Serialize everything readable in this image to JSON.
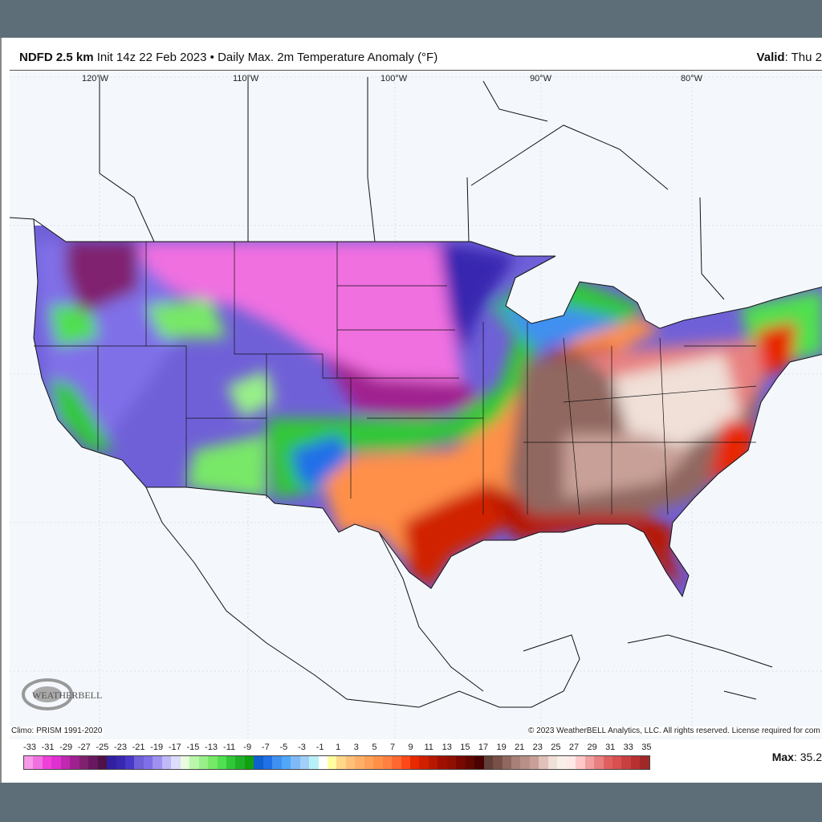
{
  "header": {
    "model": "NDFD 2.5 km",
    "init": "Init 14z 22 Feb 2023",
    "separator": "•",
    "product": "Daily Max. 2m Temperature Anomaly (°F)",
    "valid_label": "Valid",
    "valid_value": ": Thu 2"
  },
  "longitudes": [
    "120°W",
    "110°W",
    "100°W",
    "90°W",
    "80°W"
  ],
  "climo": "Climo: PRISM 1991-2020",
  "copyright": "© 2023 WeatherBELL Analytics, LLC. All rights reserved. License required for com",
  "logo_text": "WeatherBELL",
  "max": {
    "label": "Max",
    "value": ": 35.2"
  },
  "colorbar": {
    "labels": [
      "-33",
      "-31",
      "-29",
      "-27",
      "-25",
      "-23",
      "-21",
      "-19",
      "-17",
      "-15",
      "-13",
      "-11",
      "-9",
      "-7",
      "-5",
      "-3",
      "-1",
      "1",
      "3",
      "5",
      "7",
      "9",
      "11",
      "13",
      "15",
      "17",
      "19",
      "21",
      "23",
      "25",
      "27",
      "29",
      "31",
      "33",
      "35"
    ],
    "colors": [
      "#f898e8",
      "#f070e0",
      "#f040d8",
      "#e030d0",
      "#c028b0",
      "#a02090",
      "#802070",
      "#681860",
      "#501048",
      "#3020a0",
      "#3828b0",
      "#4838c8",
      "#7060d8",
      "#8070e8",
      "#a090f0",
      "#c0b8f8",
      "#dcdcfc",
      "#e8fce0",
      "#b8f8a8",
      "#98f088",
      "#78e868",
      "#50e050",
      "#30c838",
      "#20b028",
      "#10a010",
      "#1060d0",
      "#2070e8",
      "#4090f0",
      "#50a8f8",
      "#80b8f8",
      "#a0d0f8",
      "#b8f0f8",
      "#ffffff",
      "#ffffa0",
      "#ffd888",
      "#ffc078",
      "#ffb068",
      "#ffa058",
      "#ff9048",
      "#ff8040",
      "#ff6830",
      "#ff4818",
      "#e82800",
      "#d02000",
      "#b81800",
      "#a01000",
      "#901000",
      "#780800",
      "#600800",
      "#480000",
      "#604038",
      "#785048",
      "#906860",
      "#a88078",
      "#b89088",
      "#c8a098",
      "#e0c0b8",
      "#f0e0d8",
      "#f8f0e8",
      "#ffe8e8",
      "#ffc8c8",
      "#f0a0a0",
      "#e88080",
      "#e06060",
      "#d85050",
      "#c84040",
      "#b83030",
      "#a02828"
    ]
  }
}
